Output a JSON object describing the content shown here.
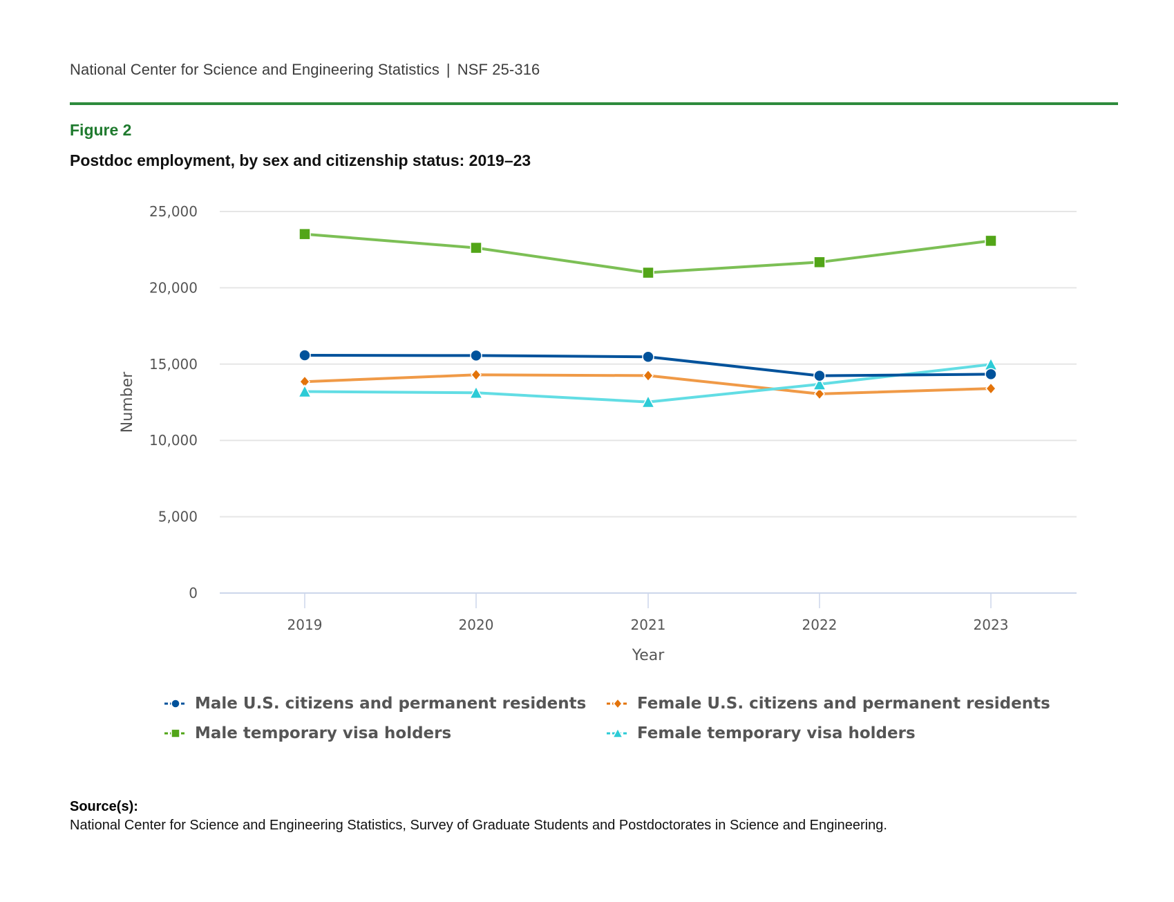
{
  "header": {
    "org": "National Center for Science and Engineering Statistics",
    "separator": "|",
    "report_id": "NSF 25-316"
  },
  "figure": {
    "label": "Figure 2",
    "title": "Postdoc employment, by sex and citizenship status: 2019–23"
  },
  "source": {
    "label": "Source(s):",
    "text": "National Center for Science and Engineering Statistics, Survey of Graduate Students and Postdoctorates in Science and Engineering."
  },
  "chart_data": {
    "type": "line",
    "title": "Postdoc employment, by sex and citizenship status: 2019–23",
    "xlabel": "Year",
    "ylabel": "Number",
    "x": [
      "2019",
      "2020",
      "2021",
      "2022",
      "2023"
    ],
    "ylim": [
      0,
      25000
    ],
    "yticks": [
      0,
      5000,
      10000,
      15000,
      20000,
      25000
    ],
    "ytick_labels": [
      "0",
      "5,000",
      "10,000",
      "15,000",
      "20,000",
      "25,000"
    ],
    "grid": true,
    "legend_position": "bottom",
    "series": [
      {
        "name": "Male U.S. citizens and permanent residents",
        "marker": "circle",
        "color": "#00529b",
        "line_color": "#00529b",
        "values": [
          15580,
          15560,
          15480,
          14240,
          14340
        ]
      },
      {
        "name": "Female U.S. citizens and permanent residents",
        "marker": "diamond",
        "color": "#e3730a",
        "line_color": "#f09a47",
        "values": [
          13850,
          14300,
          14250,
          13050,
          13400
        ]
      },
      {
        "name": "Male temporary visa holders",
        "marker": "square",
        "color": "#52a518",
        "line_color": "#7cbf55",
        "values": [
          23520,
          22620,
          20990,
          21680,
          23080
        ]
      },
      {
        "name": "Female temporary visa holders",
        "marker": "triangle",
        "color": "#2ccbd6",
        "line_color": "#62dde4",
        "values": [
          13200,
          13120,
          12520,
          13680,
          14980
        ]
      }
    ]
  }
}
